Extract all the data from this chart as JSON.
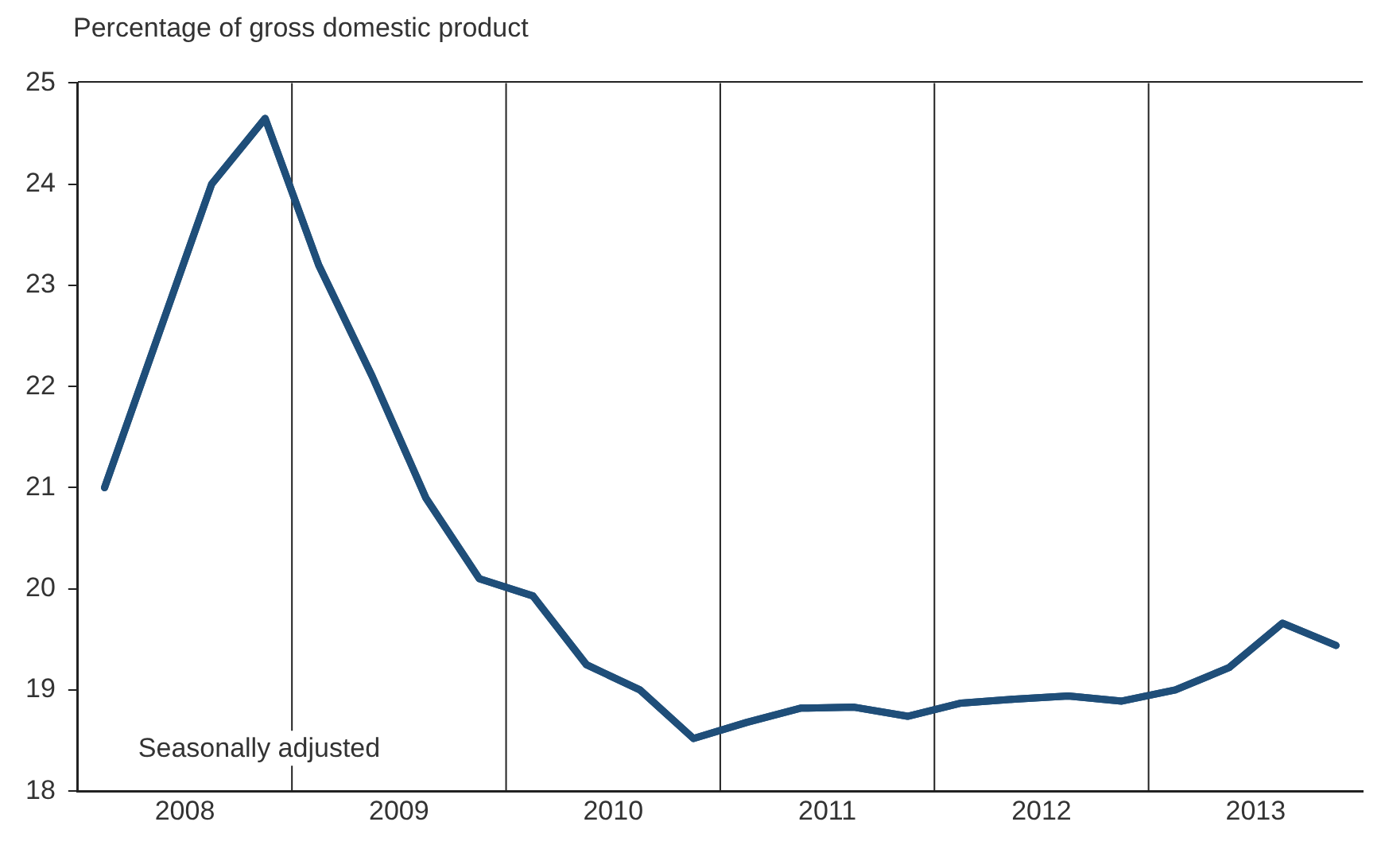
{
  "chart_data": {
    "type": "line",
    "ylabel": "Percentage of gross domestic product",
    "annotations": [
      "Seasonally adjusted"
    ],
    "x": [
      2008.125,
      2008.375,
      2008.625,
      2008.875,
      2009.125,
      2009.375,
      2009.625,
      2009.875,
      2010.125,
      2010.375,
      2010.625,
      2010.875,
      2011.125,
      2011.375,
      2011.625,
      2011.875,
      2012.125,
      2012.375,
      2012.625,
      2012.875,
      2013.125,
      2013.375,
      2013.625,
      2013.875
    ],
    "series": [
      {
        "color": "#1f4e79",
        "values": [
          21.0,
          22.5,
          24.0,
          24.65,
          23.2,
          22.1,
          20.9,
          20.1,
          19.93,
          19.25,
          19.0,
          18.52,
          18.68,
          18.82,
          18.83,
          18.74,
          18.87,
          18.91,
          18.94,
          18.89,
          19.0,
          19.22,
          19.66,
          19.44
        ]
      }
    ],
    "xlim": [
      2008,
      2014
    ],
    "xticks": [
      {
        "value": 2008.5,
        "label": "2008"
      },
      {
        "value": 2009.5,
        "label": "2009"
      },
      {
        "value": 2010.5,
        "label": "2010"
      },
      {
        "value": 2011.5,
        "label": "2011"
      },
      {
        "value": 2012.5,
        "label": "2012"
      },
      {
        "value": 2013.5,
        "label": "2013"
      }
    ],
    "ylim": [
      18,
      25
    ],
    "yticks": [
      18,
      19,
      20,
      21,
      22,
      23,
      24,
      25
    ],
    "ref_lines": [
      {
        "axis": "x",
        "value": 2009,
        "color": "#222222"
      },
      {
        "axis": "x",
        "value": 2010,
        "color": "#222222"
      },
      {
        "axis": "x",
        "value": 2011,
        "color": "#222222"
      },
      {
        "axis": "x",
        "value": 2012,
        "color": "#222222"
      },
      {
        "axis": "x",
        "value": 2013,
        "color": "#222222"
      }
    ],
    "grid": false,
    "legend": false,
    "marker": "none",
    "line_style": "solid"
  }
}
